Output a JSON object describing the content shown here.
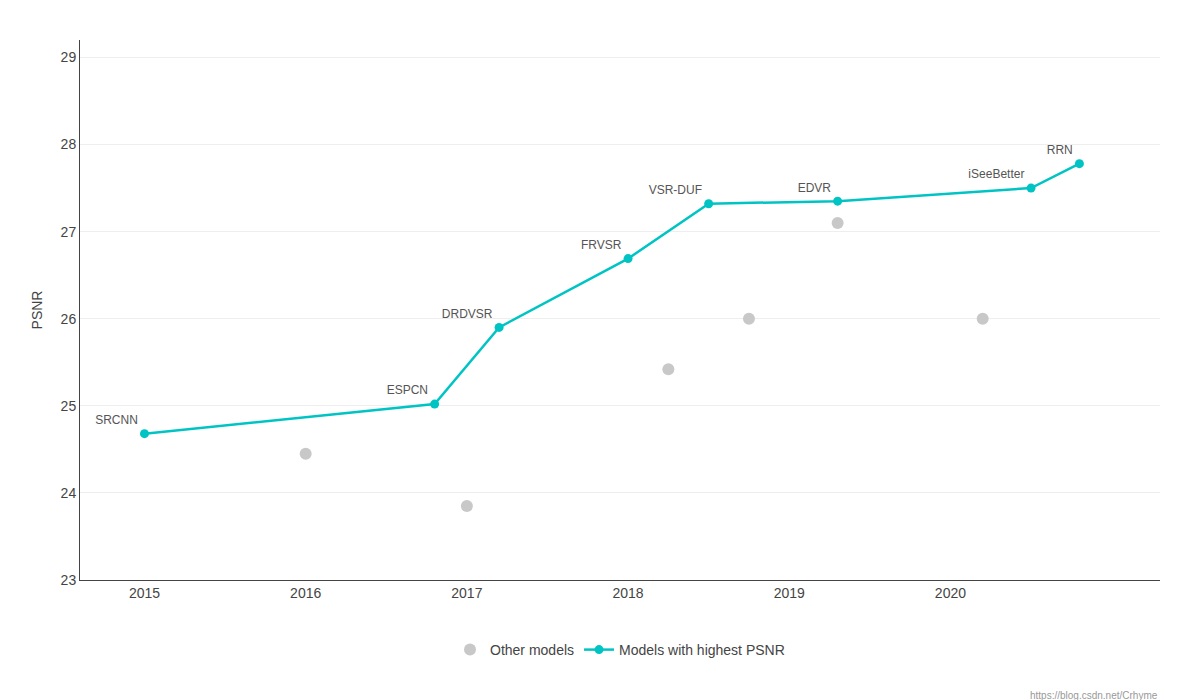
{
  "chart_data": {
    "type": "line",
    "y_label": "PSNR",
    "xlim": [
      2014.6,
      2021.3
    ],
    "xticks": [
      2015,
      2016,
      2017,
      2018,
      2019,
      2020
    ],
    "ylim": [
      23.0,
      29.2
    ],
    "yticks": [
      23,
      24,
      25,
      26,
      27,
      28,
      29
    ],
    "grid": true,
    "legend": "bottom",
    "series": [
      {
        "name": "Other models",
        "type": "scatter",
        "marker": "circle",
        "color": "#C8C8C8",
        "x": [
          2016.0,
          2017.0,
          2018.25,
          2018.75,
          2019.3,
          2020.2
        ],
        "values": [
          24.45,
          23.85,
          25.42,
          26.0,
          27.1,
          26.0
        ]
      },
      {
        "name": "Models with highest PSNR",
        "type": "line",
        "marker": "circle",
        "line_style": "solid",
        "color": "#00C4C4",
        "x": [
          2015,
          2016.8,
          2017.2,
          2018.0,
          2018.5,
          2019.3,
          2020.5,
          2020.8
        ],
        "values": [
          24.68,
          25.02,
          25.9,
          26.69,
          27.32,
          27.35,
          27.5,
          27.78
        ],
        "labels": [
          "SRCNN",
          "ESPCN",
          "DRDVSR",
          "FRVSR",
          "VSR-DUF",
          "EDVR",
          "iSeeBetter",
          "RRN"
        ]
      }
    ],
    "annotations": [
      "https://blog.csdn.net/Crhyme"
    ]
  }
}
